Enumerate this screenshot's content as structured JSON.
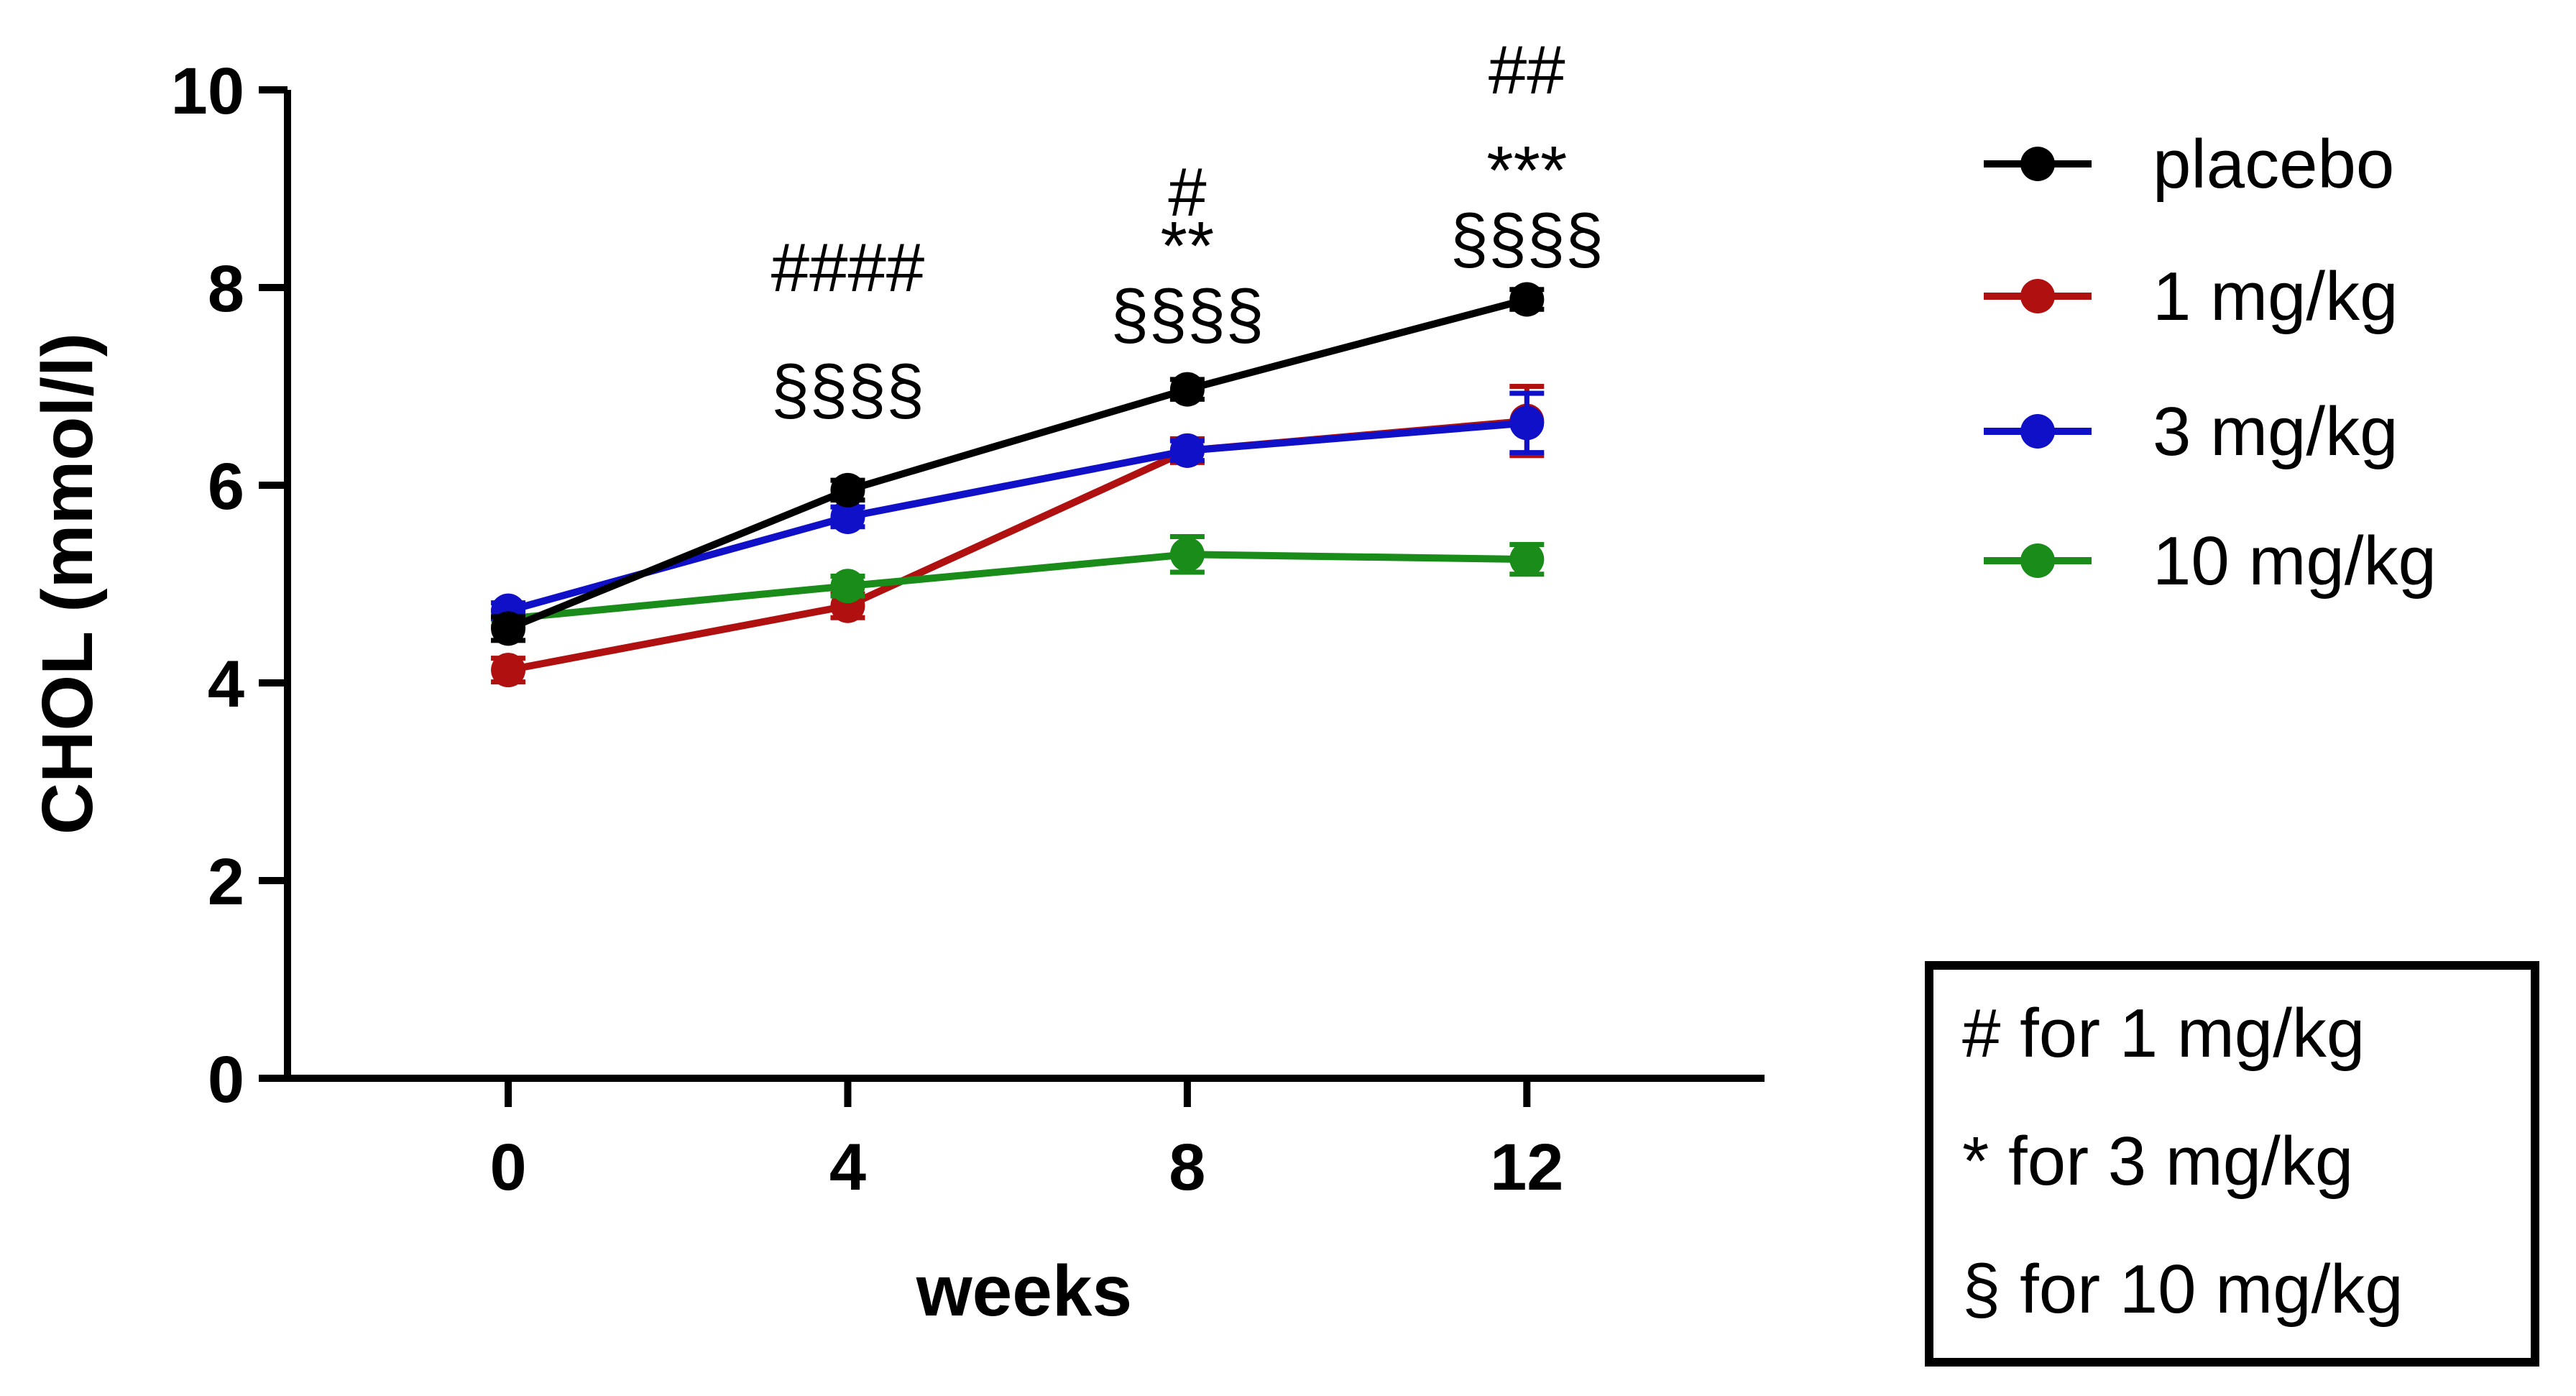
{
  "chart_data": {
    "type": "line",
    "xlabel": "weeks",
    "ylabel": "CHOL (mmol/l)",
    "x": [
      0,
      4,
      8,
      12
    ],
    "x_ticks": [
      "0",
      "4",
      "8",
      "12"
    ],
    "xlim": [
      -2.6,
      14.8
    ],
    "ylim": [
      0,
      10
    ],
    "y_ticks": [
      "0",
      "2",
      "4",
      "6",
      "8",
      "10"
    ],
    "series": [
      {
        "name": "placebo",
        "color": "#000000",
        "values": [
          4.55,
          5.95,
          6.97,
          7.88
        ],
        "errors": [
          0.12,
          0.1,
          0.1,
          0.1
        ]
      },
      {
        "name": "1 mg/kg",
        "color": "#b01010",
        "values": [
          4.13,
          4.78,
          6.35,
          6.65
        ],
        "errors": [
          0.12,
          0.12,
          0.12,
          0.35
        ]
      },
      {
        "name": "3 mg/kg",
        "color": "#1010c8",
        "values": [
          4.73,
          5.68,
          6.35,
          6.63
        ],
        "errors": [
          0.08,
          0.1,
          0.1,
          0.3
        ]
      },
      {
        "name": "10 mg/kg",
        "color": "#1a8c1a",
        "values": [
          4.65,
          4.98,
          5.3,
          5.25
        ],
        "errors": [
          0.08,
          0.1,
          0.18,
          0.15
        ]
      }
    ],
    "annotations": [
      {
        "x": 4,
        "lines": [
          "####",
          "",
          "§§§§"
        ]
      },
      {
        "x": 8,
        "lines": [
          "#",
          "**",
          "§§§§"
        ]
      },
      {
        "x": 12,
        "lines": [
          "##",
          "",
          "***",
          "§§§§"
        ]
      }
    ],
    "significance_key": [
      "# for 1 mg/kg",
      "* for 3 mg/kg",
      "§ for 10 mg/kg"
    ],
    "legend_position": "top-right"
  }
}
